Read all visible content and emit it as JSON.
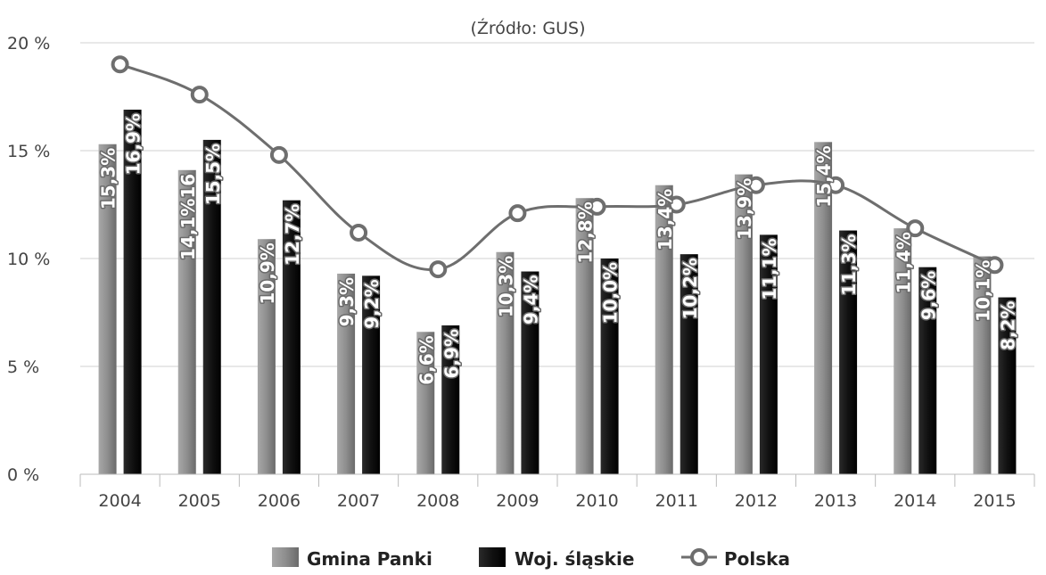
{
  "chart_data": {
    "type": "bar",
    "subtitle": "(Źródło: GUS)",
    "categories": [
      "2004",
      "2005",
      "2006",
      "2007",
      "2008",
      "2009",
      "2010",
      "2011",
      "2012",
      "2013",
      "2014",
      "2015"
    ],
    "y_ticks": [
      "0 %",
      "5 %",
      "10 %",
      "15 %",
      "20 %"
    ],
    "ylim": [
      0,
      20
    ],
    "grid": true,
    "legend_position": "bottom",
    "series": [
      {
        "name": "Gmina Panki",
        "kind": "bar",
        "color": "#8c8c8c",
        "values": [
          15.3,
          14.1,
          10.9,
          9.3,
          6.6,
          10.3,
          12.8,
          13.4,
          13.9,
          15.4,
          11.4,
          10.1
        ],
        "labels": [
          "15,3%",
          "14,1%16",
          "10,9%",
          "9,3%",
          "6,6%",
          "10,3%",
          "12,8%",
          "13,4%",
          "13,9%",
          "15,4%",
          "11,4%",
          "10,1%"
        ]
      },
      {
        "name": "Woj. śląskie",
        "kind": "bar",
        "color": "#111111",
        "values": [
          16.9,
          15.5,
          12.7,
          9.2,
          6.9,
          9.4,
          10.0,
          10.2,
          11.1,
          11.3,
          9.6,
          8.2
        ],
        "labels": [
          "16,9%",
          "15,5%",
          "12,7%",
          "9,2%",
          "6,9%",
          "9,4%",
          "10,0%",
          "10,2%",
          "11,1%",
          "11,3%",
          "9,6%",
          "8,2%"
        ]
      },
      {
        "name": "Polska",
        "kind": "line",
        "color": "#6e6e6e",
        "values": [
          19.0,
          17.6,
          14.8,
          11.2,
          9.5,
          12.1,
          12.4,
          12.5,
          13.4,
          13.4,
          11.4,
          9.7
        ]
      }
    ]
  }
}
